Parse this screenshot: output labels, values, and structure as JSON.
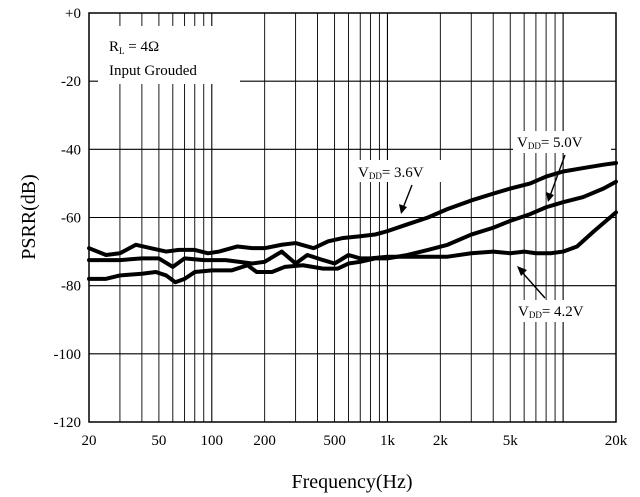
{
  "chart_data": {
    "type": "line",
    "title": "",
    "xlabel": "Frequency(Hz)",
    "ylabel": "PSRR(dB)",
    "x_scale": "log",
    "xlim": [
      20,
      20000
    ],
    "ylim": [
      -120,
      0
    ],
    "grid": true,
    "x_ticks": [
      {
        "value": 20,
        "label": "20"
      },
      {
        "value": 50,
        "label": "50"
      },
      {
        "value": 100,
        "label": "100"
      },
      {
        "value": 200,
        "label": "200"
      },
      {
        "value": 500,
        "label": "500"
      },
      {
        "value": 1000,
        "label": "1k"
      },
      {
        "value": 2000,
        "label": "2k"
      },
      {
        "value": 5000,
        "label": "5k"
      },
      {
        "value": 20000,
        "label": "20k"
      }
    ],
    "y_ticks": [
      {
        "value": 0,
        "label": "+0"
      },
      {
        "value": -20,
        "label": "-20"
      },
      {
        "value": -40,
        "label": "-40"
      },
      {
        "value": -60,
        "label": "-60"
      },
      {
        "value": -80,
        "label": "-80"
      },
      {
        "value": -100,
        "label": "-100"
      },
      {
        "value": -120,
        "label": "-120"
      }
    ],
    "annotations": {
      "load_main": "R",
      "load_sub": "L",
      "load_value": " = 4Ω",
      "condition": "Input Grouded"
    },
    "series": [
      {
        "name": "VDD = 3.6V",
        "label_main": "V",
        "label_sub": "DD",
        "label_value": "= 3.6V",
        "points": [
          [
            20,
            -69
          ],
          [
            25,
            -71
          ],
          [
            30,
            -70.5
          ],
          [
            37,
            -68
          ],
          [
            45,
            -69
          ],
          [
            55,
            -70
          ],
          [
            65,
            -69.5
          ],
          [
            80,
            -69.5
          ],
          [
            95,
            -70.5
          ],
          [
            110,
            -70
          ],
          [
            140,
            -68.5
          ],
          [
            170,
            -69
          ],
          [
            200,
            -69
          ],
          [
            250,
            -68
          ],
          [
            300,
            -67.5
          ],
          [
            380,
            -69
          ],
          [
            460,
            -67
          ],
          [
            560,
            -66
          ],
          [
            700,
            -65.5
          ],
          [
            850,
            -65
          ],
          [
            1000,
            -64
          ],
          [
            1300,
            -62
          ],
          [
            1700,
            -60
          ],
          [
            2200,
            -57.5
          ],
          [
            3000,
            -55
          ],
          [
            4000,
            -53
          ],
          [
            5000,
            -51.5
          ],
          [
            6500,
            -50
          ],
          [
            8000,
            -48
          ],
          [
            10000,
            -46.5
          ],
          [
            13000,
            -45.5
          ],
          [
            17000,
            -44.5
          ],
          [
            20000,
            -44
          ]
        ]
      },
      {
        "name": "VDD = 4.2V",
        "label_main": "V",
        "label_sub": "DD",
        "label_value": "= 4.2V",
        "points": [
          [
            20,
            -72.5
          ],
          [
            30,
            -72.5
          ],
          [
            40,
            -72
          ],
          [
            50,
            -72
          ],
          [
            60,
            -74.5
          ],
          [
            70,
            -72
          ],
          [
            90,
            -72.5
          ],
          [
            120,
            -72.5
          ],
          [
            170,
            -73.5
          ],
          [
            200,
            -73
          ],
          [
            250,
            -70
          ],
          [
            300,
            -73.5
          ],
          [
            350,
            -71
          ],
          [
            430,
            -72.5
          ],
          [
            500,
            -73.5
          ],
          [
            600,
            -71
          ],
          [
            700,
            -72
          ],
          [
            800,
            -72
          ],
          [
            1000,
            -71.5
          ],
          [
            1300,
            -71.5
          ],
          [
            1700,
            -71.5
          ],
          [
            2200,
            -71.5
          ],
          [
            3000,
            -70.5
          ],
          [
            4000,
            -70
          ],
          [
            5000,
            -70.5
          ],
          [
            6000,
            -70
          ],
          [
            7000,
            -70.5
          ],
          [
            8500,
            -70.5
          ],
          [
            10000,
            -70
          ],
          [
            12000,
            -68.5
          ],
          [
            15000,
            -64
          ],
          [
            20000,
            -58.5
          ]
        ]
      },
      {
        "name": "VDD = 5.0V",
        "label_main": "V",
        "label_sub": "DD",
        "label_value": "= 5.0V",
        "points": [
          [
            20,
            -78
          ],
          [
            25,
            -78
          ],
          [
            30,
            -77
          ],
          [
            40,
            -76.5
          ],
          [
            48,
            -76
          ],
          [
            55,
            -77
          ],
          [
            62,
            -79
          ],
          [
            70,
            -78
          ],
          [
            80,
            -76
          ],
          [
            100,
            -75.5
          ],
          [
            130,
            -75.5
          ],
          [
            160,
            -74
          ],
          [
            180,
            -76
          ],
          [
            220,
            -76
          ],
          [
            260,
            -74.5
          ],
          [
            330,
            -74
          ],
          [
            430,
            -75
          ],
          [
            520,
            -75
          ],
          [
            600,
            -73.5
          ],
          [
            700,
            -73
          ],
          [
            850,
            -72
          ],
          [
            1000,
            -72
          ],
          [
            1300,
            -71
          ],
          [
            1700,
            -69.5
          ],
          [
            2200,
            -68
          ],
          [
            3000,
            -65
          ],
          [
            4000,
            -63
          ],
          [
            5000,
            -61
          ],
          [
            6500,
            -59
          ],
          [
            8000,
            -57
          ],
          [
            10000,
            -55.5
          ],
          [
            13000,
            -54
          ],
          [
            17000,
            -51.5
          ],
          [
            20000,
            -49.5
          ]
        ]
      }
    ]
  }
}
